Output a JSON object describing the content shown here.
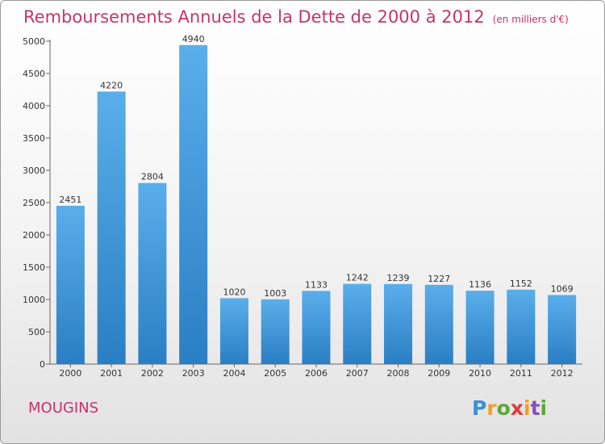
{
  "title": "Remboursements Annuels de la Dette de 2000 à 2012",
  "unit": "(en milliers d'€)",
  "city": "MOUGINS",
  "logo": {
    "p": "P",
    "r": "r",
    "o": "o",
    "x": "x",
    "i1": "i",
    "t": "t",
    "i2": "i"
  },
  "colors": {
    "bar_top": "#5aaeea",
    "bar_bottom": "#2a7fc4",
    "title": "#c8336a"
  },
  "chart_data": {
    "type": "bar",
    "categories": [
      "2000",
      "2001",
      "2002",
      "2003",
      "2004",
      "2005",
      "2006",
      "2007",
      "2008",
      "2009",
      "2010",
      "2011",
      "2012"
    ],
    "values": [
      2451,
      4220,
      2804,
      4940,
      1020,
      1003,
      1133,
      1242,
      1239,
      1227,
      1136,
      1152,
      1069
    ],
    "data_labels": [
      "2451",
      "4220",
      "2804",
      "4940",
      "1020",
      "1003",
      "1133",
      "1242",
      "1239",
      "1227",
      "1136",
      "1152",
      "1069"
    ],
    "yticks": [
      0,
      500,
      1000,
      1500,
      2000,
      2500,
      3000,
      3500,
      4000,
      4500,
      5000
    ],
    "ylim": [
      0,
      5000
    ],
    "grid": false,
    "legend": "none"
  }
}
